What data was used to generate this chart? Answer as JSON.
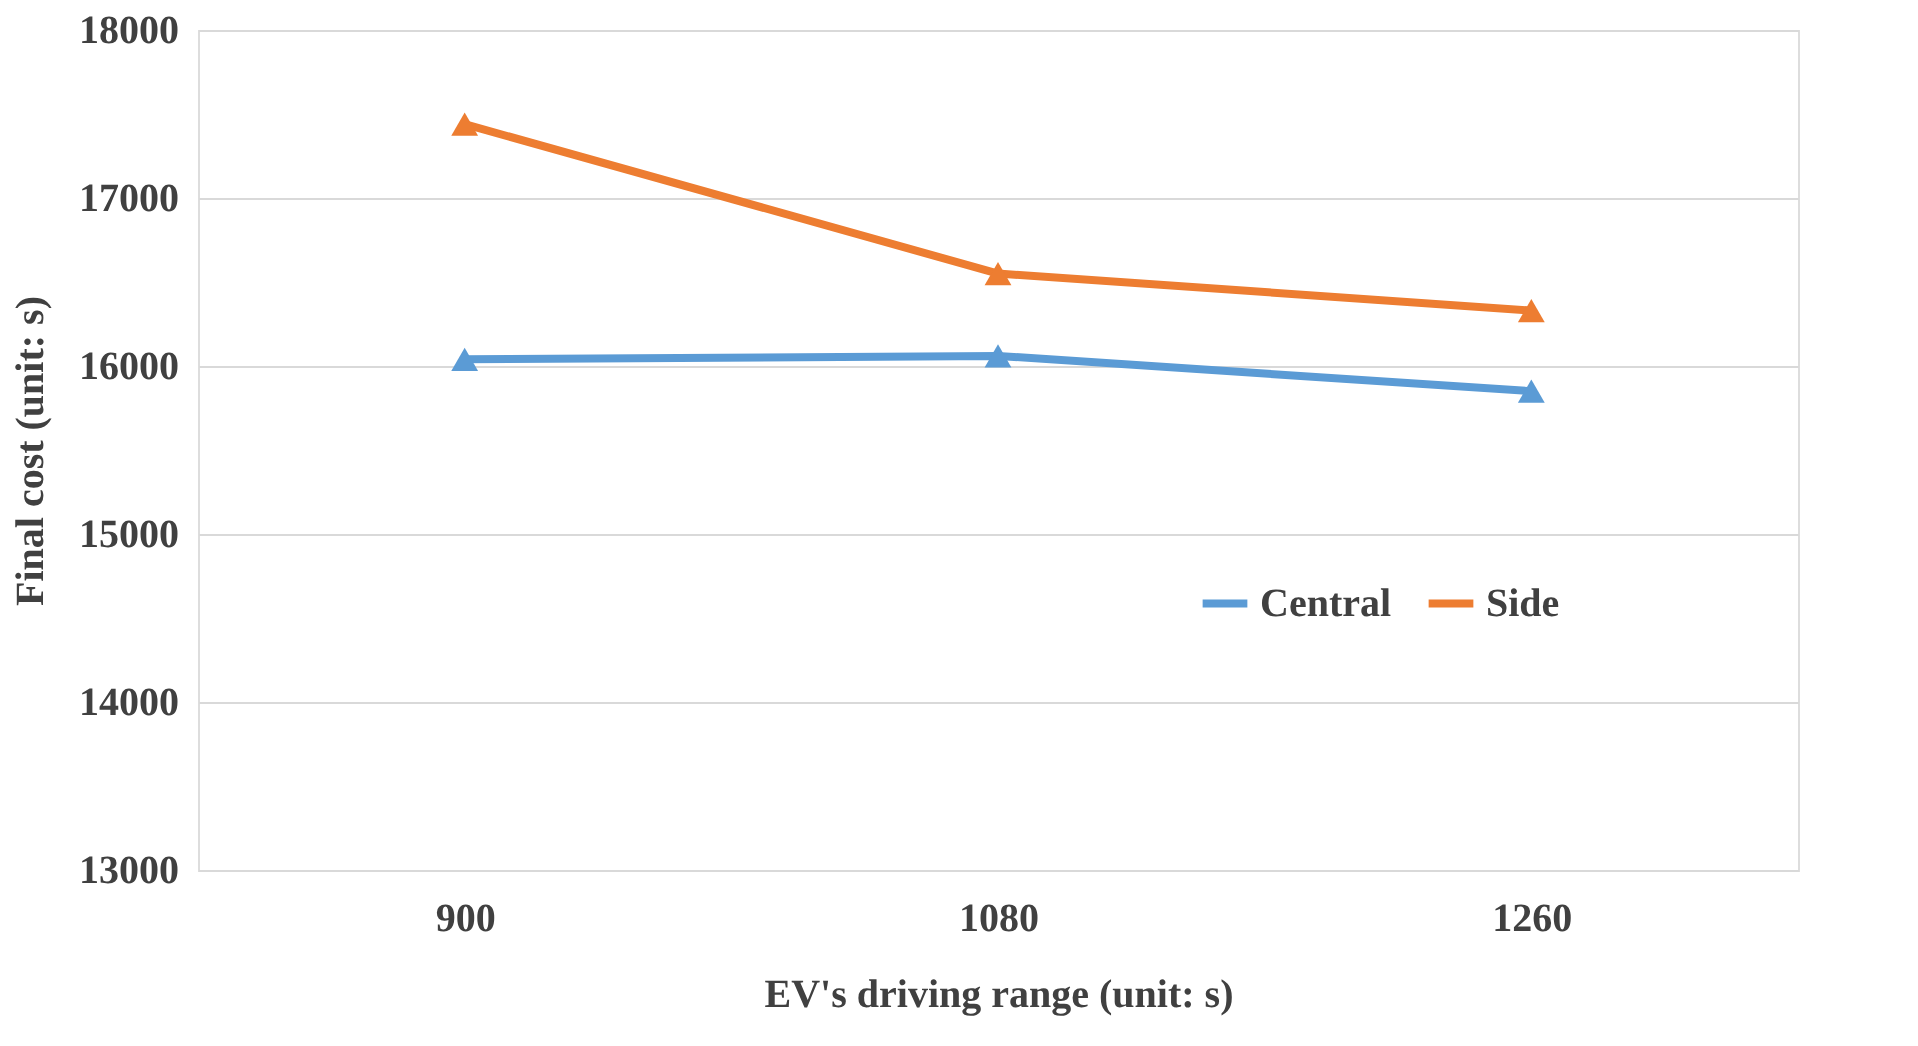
{
  "chart_data": {
    "type": "line",
    "xlabel": "EV's driving range (unit: s)",
    "ylabel": "Final cost (unit: s)",
    "categories": [
      "900",
      "1080",
      "1260"
    ],
    "series": [
      {
        "name": "Central",
        "color": "#5b9bd5",
        "values": [
          16040,
          16060,
          15850
        ]
      },
      {
        "name": "Side",
        "color": "#ed7d31",
        "values": [
          17440,
          16550,
          16330
        ]
      }
    ],
    "ylim": [
      13000,
      18000
    ],
    "yticks": [
      13000,
      14000,
      15000,
      16000,
      17000,
      18000
    ],
    "grid": "y",
    "legend": "right",
    "marker": "triangle",
    "line_style": "solid"
  }
}
